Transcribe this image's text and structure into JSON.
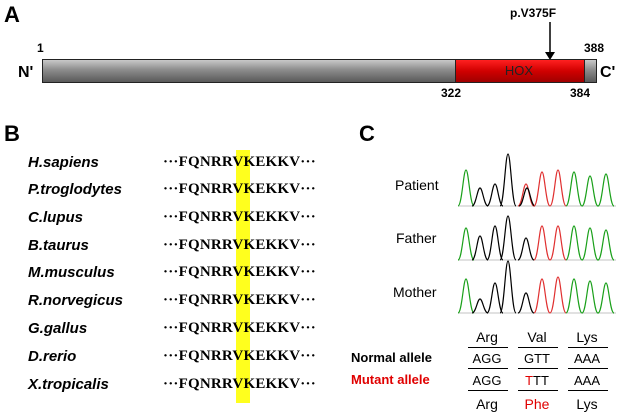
{
  "panel_a": {
    "label": "A",
    "mutation": "p.V375F",
    "n_term": "N'",
    "c_term": "C'",
    "pos_start": "1",
    "pos_end": "388",
    "domain_start": "322",
    "domain_end": "384",
    "domain_name": "HOX",
    "colors": {
      "protein": "#808080",
      "domain": "#e00000"
    }
  },
  "panel_b": {
    "label": "B",
    "rows": [
      {
        "species": "H.sapiens",
        "left": "···FQNRR",
        "v": "V",
        "right": "KEKKV···"
      },
      {
        "species": "P.troglodytes",
        "left": "···FQNRR",
        "v": "V",
        "right": "KEKKV···"
      },
      {
        "species": "C.lupus",
        "left": "···FQNRR",
        "v": "V",
        "right": "KEKKV···"
      },
      {
        "species": "B.taurus",
        "left": "···FQNRR",
        "v": "V",
        "right": "KEKKV···"
      },
      {
        "species": "M.musculus",
        "left": "···FQNRR",
        "v": "V",
        "right": "KEKKV···"
      },
      {
        "species": "R.norvegicus",
        "left": "···FQNRR",
        "v": "V",
        "right": "KEKKV···"
      },
      {
        "species": "G.gallus",
        "left": "···FQNRR",
        "v": "V",
        "right": "KEKKV···"
      },
      {
        "species": "D.rerio",
        "left": "···FQNRR",
        "v": "V",
        "right": "KEKKV···"
      },
      {
        "species": "X.tropicalis",
        "left": "···FQNRR",
        "v": "V",
        "right": "KEKKV···"
      }
    ],
    "highlight_color": "#ffff1e"
  },
  "panel_c": {
    "label": "C",
    "traces": [
      "Patient",
      "Father",
      "Mother"
    ],
    "top_aa": [
      "Arg",
      "Val",
      "Lys"
    ],
    "normal_label": "Normal allele",
    "mutant_label": "Mutant allele",
    "normal_codons": [
      "AGG",
      "GTT",
      "AAA"
    ],
    "mutant_codons": [
      {
        "pre": "",
        "mut": "",
        "post": "AGG"
      },
      {
        "pre": "",
        "mut": "T",
        "post": "TT"
      },
      {
        "pre": "",
        "mut": "",
        "post": "AAA"
      }
    ],
    "bottom_aa": [
      "Arg",
      "Phe",
      "Lys"
    ],
    "colors": {
      "mutant": "#e00000",
      "trace_green": "#1aa01a",
      "trace_red": "#e03030",
      "trace_black": "#000000"
    }
  }
}
